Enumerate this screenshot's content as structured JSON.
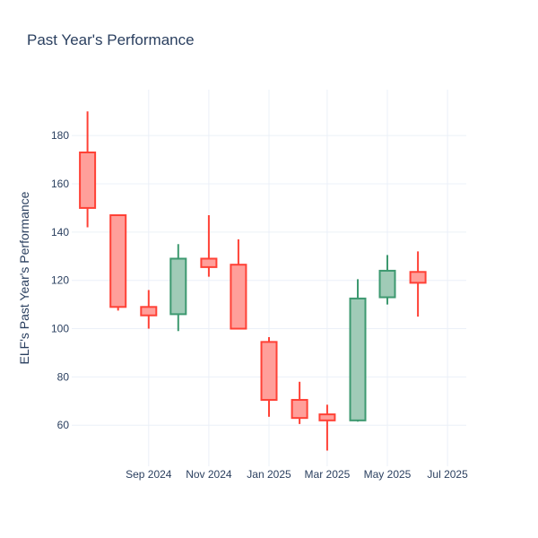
{
  "chart_data": {
    "type": "candlestick",
    "title": "Past Year's Performance",
    "xlabel": "",
    "ylabel": "ELF's Past Year's Performance",
    "grid": true,
    "legend": false,
    "ylim": [
      43,
      199
    ],
    "xlim": [
      "2024-06-15",
      "2025-07-20"
    ],
    "yticks": [
      60,
      80,
      100,
      120,
      140,
      160,
      180
    ],
    "xticks": [
      {
        "date": "2024-09-01",
        "label": "Sep 2024"
      },
      {
        "date": "2024-11-01",
        "label": "Nov 2024"
      },
      {
        "date": "2025-01-01",
        "label": "Jan 2025"
      },
      {
        "date": "2025-03-01",
        "label": "Mar 2025"
      },
      {
        "date": "2025-05-01",
        "label": "May 2025"
      },
      {
        "date": "2025-07-01",
        "label": "Jul 2025"
      }
    ],
    "colors": {
      "increasing_line": "#3d9970",
      "increasing_fill": "#a0cbb7",
      "decreasing_line": "#ff4136",
      "decreasing_fill": "#ff9f9a",
      "text": "#2a3f5f",
      "grid": "#ebf0f8"
    },
    "candles": [
      {
        "date": "2024-07-01",
        "open": 173,
        "high": 190,
        "low": 142,
        "close": 150
      },
      {
        "date": "2024-08-01",
        "open": 147,
        "high": 147,
        "low": 107.5,
        "close": 109
      },
      {
        "date": "2024-09-01",
        "open": 109,
        "high": 116,
        "low": 100,
        "close": 105.5
      },
      {
        "date": "2024-10-01",
        "open": 106,
        "high": 135,
        "low": 99,
        "close": 129
      },
      {
        "date": "2024-11-01",
        "open": 129,
        "high": 147,
        "low": 121.5,
        "close": 125.5
      },
      {
        "date": "2024-12-01",
        "open": 126.5,
        "high": 137,
        "low": 100,
        "close": 100
      },
      {
        "date": "2025-01-01",
        "open": 94.5,
        "high": 96.5,
        "low": 63.5,
        "close": 70.5
      },
      {
        "date": "2025-02-01",
        "open": 70.5,
        "high": 78,
        "low": 60.5,
        "close": 63
      },
      {
        "date": "2025-03-01",
        "open": 64.5,
        "high": 68.5,
        "low": 49.5,
        "close": 62
      },
      {
        "date": "2025-04-01",
        "open": 62,
        "high": 120.5,
        "low": 61.5,
        "close": 112.5
      },
      {
        "date": "2025-05-01",
        "open": 113,
        "high": 130.5,
        "low": 110,
        "close": 124
      },
      {
        "date": "2025-06-01",
        "open": 123.5,
        "high": 132,
        "low": 105,
        "close": 119
      }
    ]
  }
}
